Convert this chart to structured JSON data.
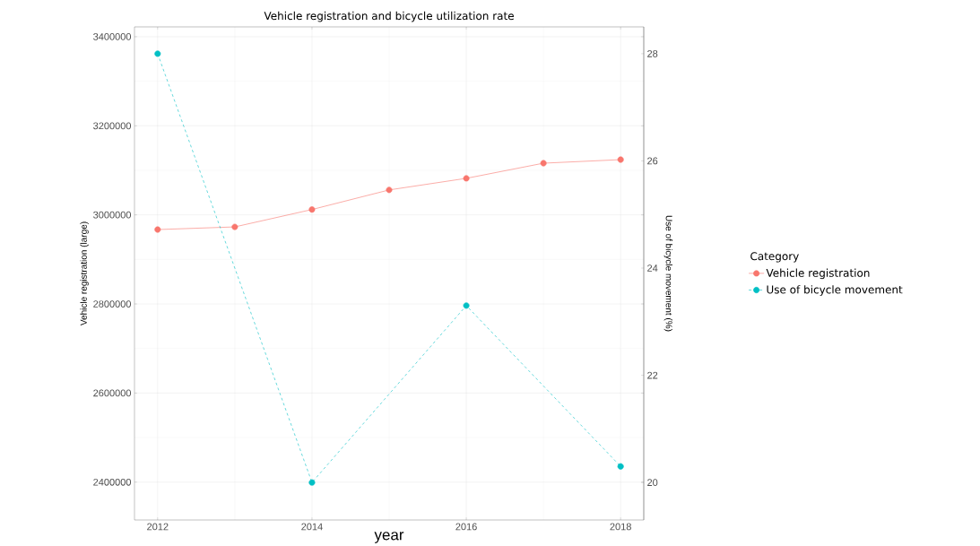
{
  "chart_data": {
    "type": "line",
    "title": "Vehicle registration and bicycle utilization rate",
    "xlabel": "year",
    "ylabel": "Vehicle registration (large)",
    "y2label": "Use of bicycle movement (%)",
    "legend_title": "Category",
    "legend": "right",
    "grid": true,
    "marker": "circle",
    "x": [
      2012,
      2013,
      2014,
      2015,
      2016,
      2017,
      2018
    ],
    "xlim": [
      2011.7,
      2018.3
    ],
    "xticks": [
      2012,
      2014,
      2016,
      2018
    ],
    "ylim": [
      2315000,
      3422000
    ],
    "yticks": [
      2400000,
      2600000,
      2800000,
      3000000,
      3200000,
      3400000
    ],
    "y2lim": [
      19.3,
      28.5
    ],
    "y2ticks": [
      20,
      22,
      24,
      26,
      28
    ],
    "series": [
      {
        "name": "Vehicle registration",
        "color": "#f8766d",
        "line_style": "solid",
        "values": [
          2967000,
          2973000,
          3012000,
          3056000,
          3082000,
          3116000,
          3124000
        ]
      },
      {
        "name": "Use of bicycle movement",
        "color": "#00bfc4",
        "line_style": "dashed",
        "axis": "y2",
        "x": [
          2012,
          2014,
          2016,
          2018
        ],
        "values": [
          28,
          20,
          23.3,
          20.3
        ]
      }
    ]
  }
}
